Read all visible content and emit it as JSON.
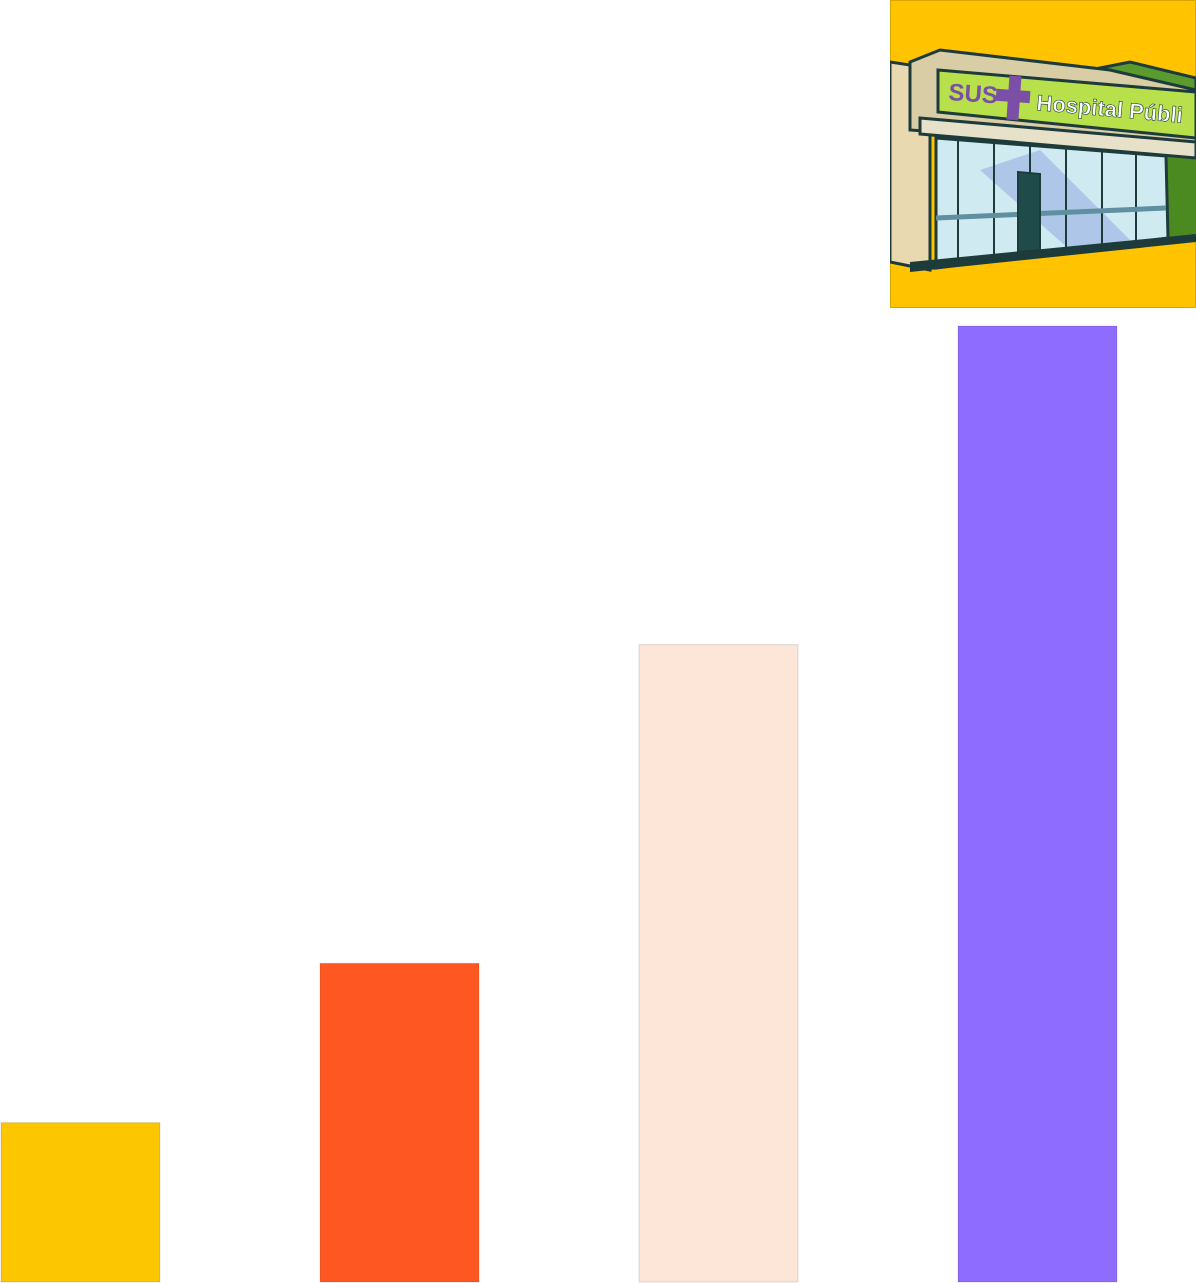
{
  "chart_data": {
    "type": "bar",
    "categories": [
      "",
      "",
      "",
      ""
    ],
    "values": [
      1,
      2,
      4,
      6
    ],
    "colors": [
      "#FDC700",
      "#FF5722",
      "#FDE5D8",
      "#8E6CFF"
    ],
    "ylim": [
      0,
      6
    ],
    "grid": false,
    "legend": "none",
    "title": "",
    "xlabel": "",
    "ylabel": ""
  },
  "illustration": {
    "icon": "hospital-building-icon",
    "sign_brand": "SUS",
    "sign_text": "Hospital Públi",
    "background_color": "#FFC300",
    "accent_color": "#7B4FA6"
  }
}
